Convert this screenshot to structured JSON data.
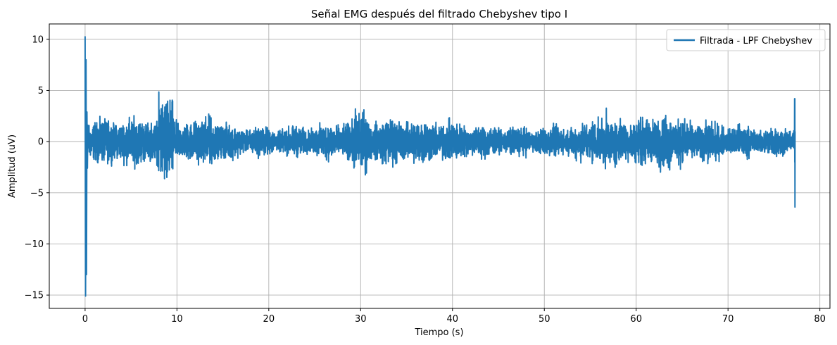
{
  "chart_data": {
    "type": "line",
    "title": "Señal EMG después del filtrado Chebyshev tipo I",
    "xlabel": "Tiempo (s)",
    "ylabel": "Amplitud (uV)",
    "xlim": [
      -3.9,
      81.1
    ],
    "ylim": [
      -16.3,
      11.5
    ],
    "xticks": [
      0,
      10,
      20,
      30,
      40,
      50,
      60,
      70,
      80
    ],
    "xtick_labels": [
      "0",
      "10",
      "20",
      "30",
      "40",
      "50",
      "60",
      "70",
      "80"
    ],
    "yticks": [
      -15,
      -10,
      -5,
      0,
      5,
      10
    ],
    "ytick_labels": [
      "−15",
      "−10",
      "−5",
      "0",
      "5",
      "10"
    ],
    "grid": true,
    "legend_position": "top-right",
    "series": [
      {
        "name": "Filtrada - LPF Chebyshev",
        "color": "#1f77b4",
        "x_range": [
          0,
          77.3
        ],
        "baseline_amplitude": 1.0,
        "spikes": [
          {
            "x": 0.0,
            "y": 10.3
          },
          {
            "x": 0.05,
            "y": -15.1
          },
          {
            "x": 0.15,
            "y": 2.9
          },
          {
            "x": 0.25,
            "y": -2.6
          },
          {
            "x": 8.8,
            "y": 3.6
          },
          {
            "x": 8.9,
            "y": -3.5
          },
          {
            "x": 13.6,
            "y": 2.5
          },
          {
            "x": 30.0,
            "y": 2.1
          },
          {
            "x": 77.25,
            "y": 4.2
          },
          {
            "x": 77.3,
            "y": -6.4
          }
        ]
      }
    ]
  }
}
